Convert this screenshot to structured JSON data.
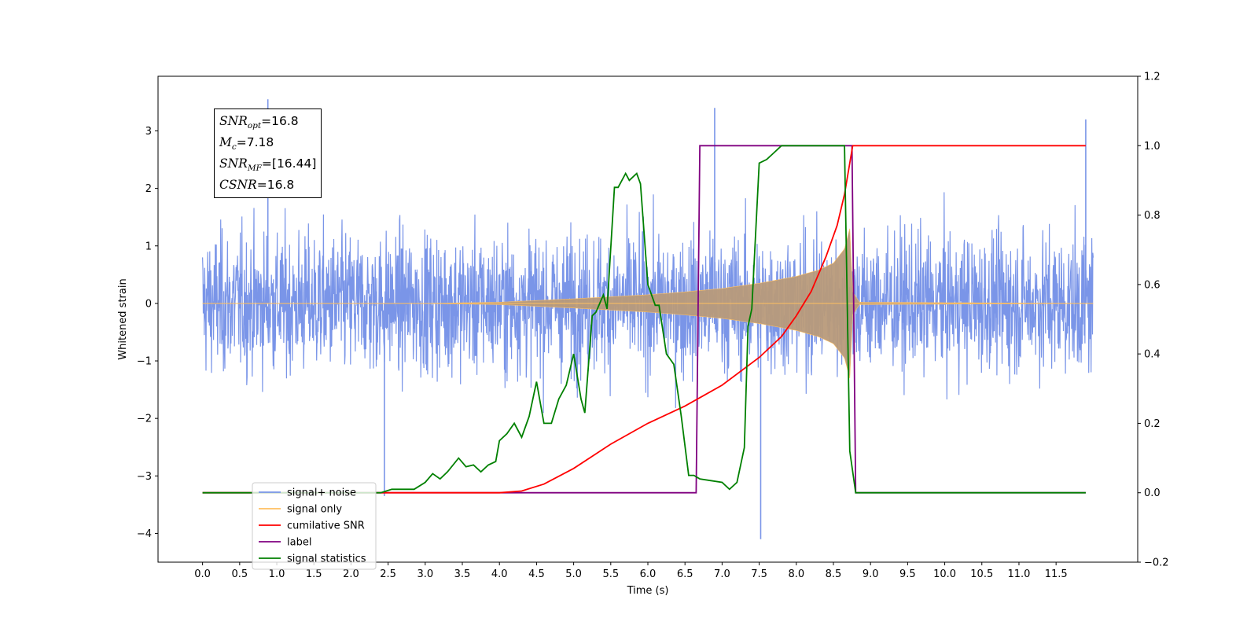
{
  "chart_data": {
    "type": "line",
    "xlabel": "Time (s)",
    "ylabel": "Whitened strain",
    "xlim": [
      -0.6,
      12.6
    ],
    "ylim_left": [
      -4.5,
      3.95
    ],
    "ylim_right": [
      -0.2,
      1.2
    ],
    "x_ticks": [
      "0.0",
      "0.5",
      "1.0",
      "1.5",
      "2.0",
      "2.5",
      "3.0",
      "3.5",
      "4.0",
      "4.5",
      "5.0",
      "5.5",
      "6.0",
      "6.5",
      "7.0",
      "7.5",
      "8.0",
      "8.5",
      "9.0",
      "9.5",
      "10.0",
      "10.5",
      "11.0",
      "11.5"
    ],
    "y_ticks_left": [
      "3",
      "2",
      "1",
      "0",
      "−1",
      "−2",
      "−3",
      "−4"
    ],
    "y_ticks_right": [
      "1.2",
      "1.0",
      "0.8",
      "0.6",
      "0.4",
      "0.2",
      "0.0",
      "−0.2"
    ],
    "legend_placement": "lower-left",
    "grid": false,
    "annotation": {
      "snr_opt_label": "SNR",
      "snr_opt_sub": "opt",
      "snr_opt_value": "=16.8",
      "mc_label": "M",
      "mc_sub": "c",
      "mc_value": "=7.18",
      "snr_mf_label": "SNR",
      "snr_mf_sub": "MF",
      "snr_mf_value": "=[16.44]",
      "csnr_label": "CSNR",
      "csnr_value": "=16.8"
    },
    "series": [
      {
        "name": "signal+ noise",
        "axis": "left",
        "color": "#7a95e8",
        "noise_band": [
          -1.6,
          1.6
        ],
        "peak_spikes": [
          [
            0.88,
            3.55
          ],
          [
            7.52,
            -4.1
          ],
          [
            6.9,
            3.4
          ],
          [
            11.9,
            3.2
          ],
          [
            2.45,
            -3.35
          ]
        ],
        "x_range": [
          0.0,
          12.0
        ]
      },
      {
        "name": "signal only",
        "axis": "left",
        "color": "#ffbf60",
        "envelope": {
          "x": [
            0.0,
            3.0,
            4.0,
            5.0,
            6.0,
            6.5,
            7.0,
            7.5,
            8.0,
            8.3,
            8.5,
            8.65,
            8.72,
            8.76,
            8.85,
            12.0
          ],
          "amp": [
            0.0,
            0.0,
            0.02,
            0.08,
            0.15,
            0.2,
            0.26,
            0.35,
            0.47,
            0.58,
            0.7,
            0.95,
            1.3,
            0.2,
            0.02,
            0.0
          ]
        }
      },
      {
        "name": "cumilative SNR",
        "axis": "right",
        "color": "#ff0000",
        "x": [
          0.0,
          4.0,
          4.3,
          4.6,
          5.0,
          5.5,
          6.0,
          6.5,
          7.0,
          7.5,
          7.8,
          8.0,
          8.2,
          8.4,
          8.55,
          8.65,
          8.72,
          8.76,
          8.9,
          11.9
        ],
        "y": [
          0.0,
          0.0,
          0.005,
          0.025,
          0.07,
          0.14,
          0.2,
          0.25,
          0.31,
          0.39,
          0.45,
          0.51,
          0.58,
          0.68,
          0.77,
          0.86,
          0.95,
          1.0,
          1.0,
          1.0
        ]
      },
      {
        "name": "label",
        "axis": "right",
        "color": "#800080",
        "x": [
          0.0,
          6.65,
          6.7,
          8.75,
          8.8,
          11.9
        ],
        "y": [
          0.0,
          0.0,
          1.0,
          1.0,
          0.0,
          0.0
        ]
      },
      {
        "name": "signal statistics",
        "axis": "right",
        "color": "#008000",
        "x": [
          0.0,
          2.4,
          2.55,
          2.7,
          2.85,
          3.0,
          3.1,
          3.2,
          3.3,
          3.45,
          3.55,
          3.65,
          3.75,
          3.85,
          3.95,
          4.0,
          4.1,
          4.2,
          4.3,
          4.4,
          4.5,
          4.6,
          4.7,
          4.8,
          4.9,
          5.0,
          5.1,
          5.15,
          5.25,
          5.3,
          5.4,
          5.45,
          5.55,
          5.6,
          5.7,
          5.75,
          5.85,
          5.9,
          6.0,
          6.1,
          6.15,
          6.25,
          6.35,
          6.45,
          6.55,
          6.62,
          6.7,
          6.85,
          7.0,
          7.1,
          7.2,
          7.3,
          7.35,
          7.4,
          7.5,
          7.6,
          7.7,
          7.8,
          8.0,
          8.3,
          8.65,
          8.72,
          8.8,
          11.9
        ],
        "y": [
          0.0,
          0.0,
          0.01,
          0.01,
          0.01,
          0.03,
          0.055,
          0.04,
          0.06,
          0.1,
          0.075,
          0.08,
          0.06,
          0.08,
          0.09,
          0.15,
          0.17,
          0.2,
          0.16,
          0.22,
          0.32,
          0.2,
          0.2,
          0.27,
          0.31,
          0.4,
          0.27,
          0.23,
          0.51,
          0.52,
          0.57,
          0.53,
          0.88,
          0.88,
          0.92,
          0.9,
          0.92,
          0.89,
          0.6,
          0.54,
          0.54,
          0.4,
          0.37,
          0.22,
          0.05,
          0.05,
          0.04,
          0.035,
          0.03,
          0.01,
          0.03,
          0.13,
          0.48,
          0.53,
          0.95,
          0.96,
          0.98,
          1.0,
          1.0,
          1.0,
          1.0,
          0.12,
          0.0,
          0.0
        ]
      }
    ]
  }
}
